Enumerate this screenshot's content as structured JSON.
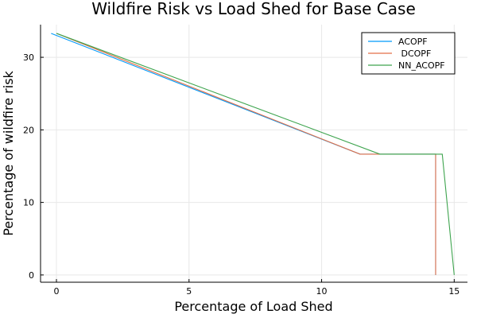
{
  "chart_data": {
    "type": "line",
    "title": "Wildfire Risk vs Load Shed for Base Case",
    "xlabel": "Percentage of Load Shed",
    "ylabel": "Percentage of wildfire risk",
    "xlim": [
      -0.6,
      15.5
    ],
    "ylim": [
      -1.0,
      34.5
    ],
    "xticks": [
      0,
      5,
      10,
      15
    ],
    "yticks": [
      0,
      10,
      20,
      30
    ],
    "grid": true,
    "legend_position": "top-right",
    "series": [
      {
        "name": "ACOPF",
        "color": "#009AFA",
        "x": [
          -0.2,
          11.45,
          14.3,
          14.3
        ],
        "y": [
          33.3,
          16.65,
          16.65,
          0
        ]
      },
      {
        "name": " DCOPF",
        "color": "#E36F47",
        "x": [
          0.0,
          11.45,
          14.3,
          14.3
        ],
        "y": [
          33.3,
          16.65,
          16.65,
          0
        ]
      },
      {
        "name": "NN_ACOPF",
        "color": "#3EA44E",
        "x": [
          0.0,
          12.2,
          14.55,
          15.0
        ],
        "y": [
          33.3,
          16.65,
          16.65,
          0
        ]
      }
    ]
  }
}
